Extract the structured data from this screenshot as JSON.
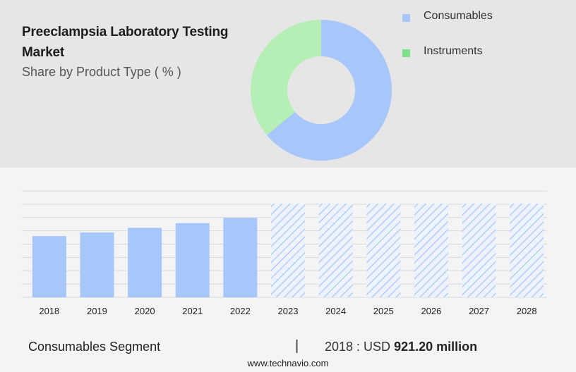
{
  "header": {
    "title": "Preeclampsia Laboratory Testing Market",
    "subtitle": "Share by Product Type ( % )"
  },
  "colors": {
    "consumables": "#a7c7fa",
    "instruments": "#b5efb6",
    "instruments_legend": "#7fe08a",
    "grid": "#d8d8d8"
  },
  "chart_data": [
    {
      "type": "pie",
      "variant": "donut",
      "legend_position": "top-right",
      "slices": [
        {
          "name": "Consumables",
          "value": 64
        },
        {
          "name": "Instruments",
          "value": 36
        }
      ]
    },
    {
      "type": "bar",
      "categories": [
        "2018",
        "2019",
        "2020",
        "2021",
        "2022",
        "2023",
        "2024",
        "2025",
        "2026",
        "2027",
        "2028"
      ],
      "values": [
        921.2,
        975,
        1045,
        1115,
        1195,
        1410,
        1410,
        1410,
        1410,
        1410,
        1410
      ],
      "forecast_from_index": 5,
      "ylim": [
        0,
        1600
      ],
      "grid": true
    }
  ],
  "footer": {
    "segment": "Consumables Segment",
    "divider": "|",
    "year_label": "2018 : USD",
    "value_text": "921.20 million",
    "url": "www.technavio.com"
  }
}
